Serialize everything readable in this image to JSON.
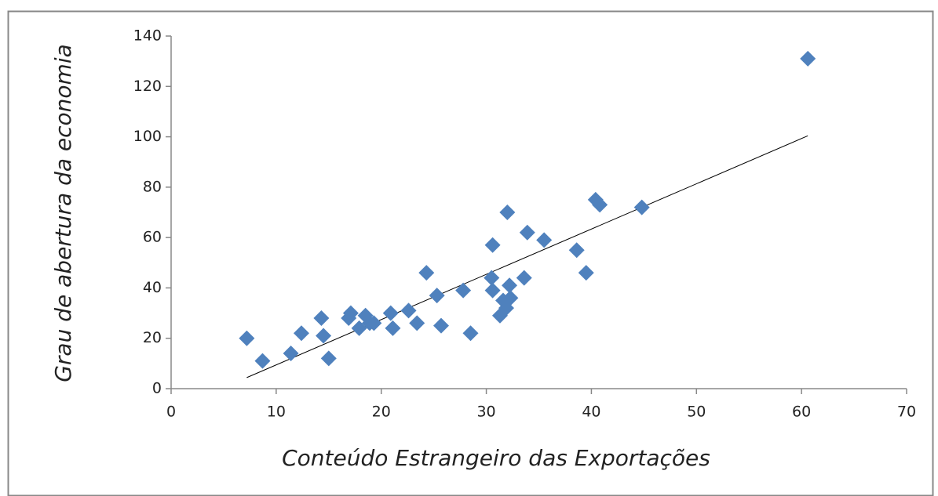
{
  "chart_data": {
    "type": "scatter",
    "x_label": "Conteúdo Estrangeiro das Exportações",
    "y_label": "Grau  de  abertura  da  economia",
    "color": "#4f81bd",
    "xlim": [
      0,
      70
    ],
    "xticks": [
      0,
      10,
      20,
      30,
      40,
      50,
      60,
      70
    ],
    "ylim": [
      0,
      140
    ],
    "yticks": [
      0,
      20,
      40,
      60,
      80,
      100,
      120,
      140
    ],
    "grid": false,
    "x": [
      7.2,
      8.7,
      11.4,
      12.4,
      14.3,
      14.5,
      15.0,
      16.9,
      17.1,
      17.9,
      18.5,
      18.9,
      19.3,
      20.9,
      21.1,
      22.6,
      23.4,
      24.3,
      25.3,
      25.7,
      27.8,
      28.5,
      30.5,
      30.6,
      30.6,
      31.3,
      31.6,
      31.9,
      32.0,
      32.2,
      32.3,
      33.6,
      33.9,
      35.5,
      38.6,
      39.5,
      40.4,
      40.8,
      44.8,
      60.6
    ],
    "values": [
      20,
      11,
      14,
      22,
      28,
      21,
      12,
      28,
      30,
      24,
      29,
      26,
      26,
      30,
      24,
      31,
      26,
      46,
      37,
      25,
      39,
      22,
      44,
      57,
      39,
      29,
      35,
      32,
      70,
      41,
      36,
      44,
      62,
      59,
      55,
      46,
      75,
      73,
      72,
      131
    ],
    "trendline": {
      "color": "#000000",
      "x": [
        7.2,
        60.6
      ],
      "values": [
        4.4,
        100.4
      ]
    }
  }
}
